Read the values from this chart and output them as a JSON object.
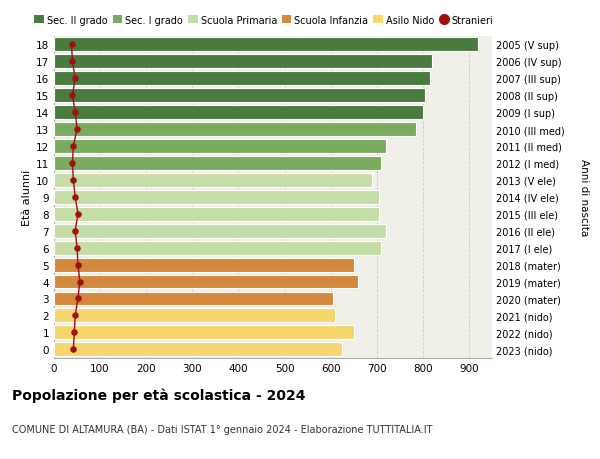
{
  "ages": [
    18,
    17,
    16,
    15,
    14,
    13,
    12,
    11,
    10,
    9,
    8,
    7,
    6,
    5,
    4,
    3,
    2,
    1,
    0
  ],
  "bar_values": [
    920,
    820,
    815,
    805,
    800,
    785,
    720,
    710,
    690,
    705,
    705,
    720,
    710,
    650,
    660,
    605,
    610,
    650,
    625
  ],
  "stranieri_values": [
    38,
    40,
    46,
    40,
    46,
    50,
    42,
    40,
    42,
    46,
    52,
    46,
    50,
    52,
    56,
    52,
    46,
    44,
    42
  ],
  "bar_colors": [
    "#4a7c40",
    "#4a7c40",
    "#4a7c40",
    "#4a7c40",
    "#4a7c40",
    "#7aab5e",
    "#7aab5e",
    "#7aab5e",
    "#c5dea8",
    "#c5dea8",
    "#c5dea8",
    "#c5dea8",
    "#c5dea8",
    "#d4883a",
    "#d4883a",
    "#d4883a",
    "#f5d76e",
    "#f5d76e",
    "#f5d76e"
  ],
  "right_labels": [
    "2005 (V sup)",
    "2006 (IV sup)",
    "2007 (III sup)",
    "2008 (II sup)",
    "2009 (I sup)",
    "2010 (III med)",
    "2011 (II med)",
    "2012 (I med)",
    "2013 (V ele)",
    "2014 (IV ele)",
    "2015 (III ele)",
    "2016 (II ele)",
    "2017 (I ele)",
    "2018 (mater)",
    "2019 (mater)",
    "2020 (mater)",
    "2021 (nido)",
    "2022 (nido)",
    "2023 (nido)"
  ],
  "legend_labels": [
    "Sec. II grado",
    "Sec. I grado",
    "Scuola Primaria",
    "Scuola Infanzia",
    "Asilo Nido",
    "Stranieri"
  ],
  "legend_colors": [
    "#4a7c40",
    "#7aab5e",
    "#c5dea8",
    "#d4883a",
    "#f5d76e",
    "#a01010"
  ],
  "ylabel": "Età alunni",
  "right_ylabel": "Anni di nascita",
  "title": "Popolazione per età scolastica - 2024",
  "subtitle": "COMUNE DI ALTAMURA (BA) - Dati ISTAT 1° gennaio 2024 - Elaborazione TUTTITALIA.IT",
  "xlim": [
    0,
    950
  ],
  "xticks": [
    0,
    100,
    200,
    300,
    400,
    500,
    600,
    700,
    800,
    900
  ],
  "background_color": "#ffffff",
  "plot_bg_color": "#f0efe8",
  "grid_color": "#cccccc",
  "stranieri_color": "#a01010",
  "bar_edge_color": "#ffffff"
}
